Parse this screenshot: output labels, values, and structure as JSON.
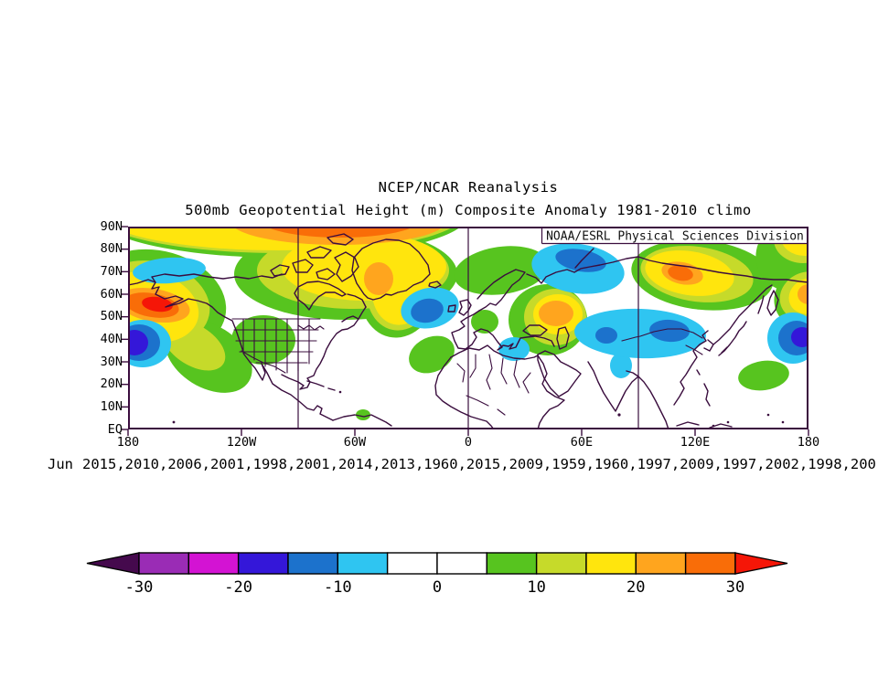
{
  "header": {
    "title": "NCEP/NCAR Reanalysis",
    "subtitle": "500mb Geopotential Height (m) Composite Anomaly 1981-2010 climo"
  },
  "map": {
    "credit": "NOAA/ESRL Physical Sciences Division",
    "lat_ticks": [
      "90N",
      "80N",
      "70N",
      "60N",
      "50N",
      "40N",
      "30N",
      "20N",
      "10N",
      "EQ"
    ],
    "lon_ticks": [
      "180",
      "120W",
      "60W",
      "0",
      "60E",
      "120E",
      "180"
    ],
    "outline_color": "#3a0d3e"
  },
  "caption": {
    "month": "Jun",
    "years_visible": "2015,2010,2006,2001,1998,2001,2014,2013,1960,2015,2009,1959,1960,1997,2009,1997,2002,1998,200"
  },
  "colorbar": {
    "levels": [
      -30,
      -25,
      -20,
      -15,
      -10,
      -5,
      0,
      5,
      10,
      15,
      20,
      25,
      30
    ],
    "tick_labels": [
      "-30",
      "-20",
      "-10",
      "0",
      "10",
      "20",
      "30"
    ],
    "colors": {
      "below": "#45094d",
      "bins": [
        "#9a2cb5",
        "#d313d3",
        "#3417d9",
        "#1c72cc",
        "#2fc5f1",
        "#ffffff",
        "#ffffff",
        "#57c41f",
        "#c6da2a",
        "#ffe50d",
        "#ffa51e",
        "#f96d08"
      ],
      "above": "#f51607"
    }
  },
  "chart_data": {
    "type": "heatmap",
    "title": "NCEP/NCAR Reanalysis",
    "subtitle": "500mb Geopotential Height (m) Composite Anomaly 1981-2010 climo",
    "source_label": "NOAA/ESRL Physical Sciences Division",
    "month": "Jun",
    "composite_years": [
      2015,
      2010,
      2006,
      2001,
      1998,
      2001,
      2014,
      2013,
      1960,
      2015,
      2009,
      1959,
      1960,
      1997,
      2009,
      1997,
      2002,
      1998
    ],
    "last_year_clipped_text": "200",
    "units": "m",
    "contour_interval": 5,
    "x_axis": {
      "ticks": [
        "180",
        "120W",
        "60W",
        "0",
        "60E",
        "120E",
        "180"
      ],
      "range_deg_lon": [
        -180,
        180
      ],
      "meridian_gridlines_deg": [
        -90,
        0,
        90
      ]
    },
    "y_axis": {
      "ticks": [
        "90N",
        "80N",
        "70N",
        "60N",
        "50N",
        "40N",
        "30N",
        "20N",
        "10N",
        "EQ"
      ],
      "range_deg_lat": [
        0,
        90
      ]
    },
    "colorbar_levels": [
      -30,
      -25,
      -20,
      -15,
      -10,
      -5,
      0,
      5,
      10,
      15,
      20,
      25,
      30
    ],
    "colorbar_tick_labels": [
      "-30",
      "-20",
      "-10",
      "0",
      "10",
      "20",
      "30"
    ],
    "anomaly_centers": [
      {
        "region": "Gulf of Alaska (55N 165W)",
        "sign": "positive",
        "peak_m": 32
      },
      {
        "region": "Central North Pacific (40N 175W)",
        "sign": "negative",
        "peak_m": -22
      },
      {
        "region": "Arctic Canada / Greenland (75N 100W-40W)",
        "sign": "positive",
        "peak_m": 25
      },
      {
        "region": "Western United States (40N 110W)",
        "sign": "positive",
        "peak_m": 8
      },
      {
        "region": "Chukchi / Beaufort Sea (72N 170W)",
        "sign": "negative",
        "peak_m": -8
      },
      {
        "region": "Central North Atlantic (45N 35W)",
        "sign": "negative",
        "peak_m": -17
      },
      {
        "region": "Subtropical NE Atlantic (33N 30W)",
        "sign": "positive",
        "peak_m": 8
      },
      {
        "region": "Scandinavia (68N 20E)",
        "sign": "positive",
        "peak_m": 8
      },
      {
        "region": "Western Russia (55N 45E)",
        "sign": "positive",
        "peak_m": 22
      },
      {
        "region": "Kara Sea (75N 65E)",
        "sign": "negative",
        "peak_m": -17
      },
      {
        "region": "Black Sea / Anatolia (42N 32E)",
        "sign": "negative",
        "peak_m": -8
      },
      {
        "region": "Persian Gulf (25N 50E)",
        "sign": "negative",
        "peak_m": -8
      },
      {
        "region": "Mongolia / Central Asia (45N 95E)",
        "sign": "negative",
        "peak_m": -17
      },
      {
        "region": "Arctic Siberia (75N 110E)",
        "sign": "positive",
        "peak_m": 27
      },
      {
        "region": "Chukotka / NE Russia (65N 175E)",
        "sign": "positive",
        "peak_m": 22
      },
      {
        "region": "Northwest Pacific (40N 178E)",
        "sign": "negative",
        "peak_m": -22
      },
      {
        "region": "Philippine Sea (20N 145E)",
        "sign": "positive",
        "peak_m": 8
      }
    ]
  }
}
